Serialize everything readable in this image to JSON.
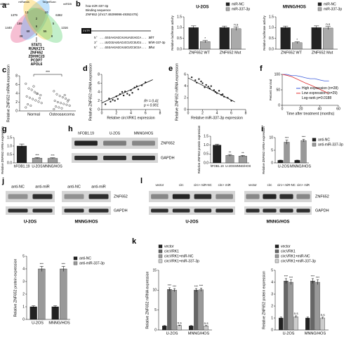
{
  "panel_labels": [
    "a",
    "b",
    "c",
    "d",
    "e",
    "f",
    "g",
    "h",
    "i",
    "j",
    "l",
    "k"
  ],
  "venn": {
    "sets": [
      "miRWalk",
      "miRanda",
      "TargetScan",
      "miRDB"
    ],
    "regions": [
      1379,
      6382,
      1440,
      13,
      10,
      1316,
      189,
      2,
      5,
      68,
      56,
      28,
      8,
      7,
      6
    ],
    "genes": [
      "STAT1",
      "RUNX1T1",
      "ZNF652",
      "ZDHHC23",
      "PCDP7",
      "APOL6"
    ]
  },
  "binding": {
    "title": "hsa-miR-337-3p",
    "subtitle": "Binding sequence",
    "gene": "ZNF652 (chr17:49299996-49362475)",
    "utr": "3'UTR",
    "sequences": [
      {
        "seq": "5' ...GGGAAGAGCAUAUAGGAGCA... 3'",
        "label": "WT"
      },
      {
        "seq": "3' ...UUCGGAUGACUCCUCCGUCU... 5'",
        "label": "miR-337-3p"
      },
      {
        "seq": "5' ...GGGAAGAGCAUUCUCCUCGA... 3'",
        "label": "Mut"
      }
    ]
  },
  "blots": {
    "h": {
      "lanes": [
        "hFOB1.19",
        "U-2OS",
        "MNNG/HOS"
      ],
      "rows": [
        "ZNF652",
        "GAPDH"
      ]
    },
    "j": {
      "groups": [
        {
          "cell": "U-2OS",
          "lanes": [
            "anti-NC",
            "anti-miR"
          ]
        },
        {
          "cell": "MNNG/HOS",
          "lanes": [
            "anti-NC",
            "anti-miR"
          ]
        }
      ],
      "rows": [
        "ZNF652",
        "GAPDH"
      ]
    },
    "l": {
      "groups": [
        {
          "cell": "U-2OS",
          "lanes": [
            "vector",
            "circ",
            "circ+ miR-NC",
            "circ+ miR"
          ]
        },
        {
          "cell": "MNNG/HOS",
          "lanes": [
            "vector",
            "circ",
            "circ+ miR-NC",
            "circ+ miR"
          ]
        }
      ],
      "rows": [
        "ZNF652",
        "GAPDH"
      ]
    }
  },
  "chart_data": [
    {
      "type": "bar",
      "title": "U-2OS",
      "ylabel": "Relative luciferase activity",
      "categories": [
        "ZNF652 WT",
        "ZNF652 Mut"
      ],
      "series": [
        {
          "name": "miR-NC",
          "color": "#222222",
          "values": [
            1.0,
            1.0
          ],
          "errors": [
            0.08,
            0.07
          ]
        },
        {
          "name": "miR-337-3p",
          "color": "#aaaaaa",
          "values": [
            0.35,
            0.95
          ],
          "errors": [
            0.05,
            0.08
          ],
          "significance": [
            "*",
            "n.s"
          ]
        }
      ],
      "ylim": [
        0,
        1.5
      ],
      "yticks": [
        {
          "value": 0,
          "label": "0.0"
        },
        {
          "value": 0.5,
          "label": "0.5"
        },
        {
          "value": 1,
          "label": "1.0"
        },
        {
          "value": 1.5,
          "label": "1.5"
        }
      ],
      "legend": "top-right"
    },
    {
      "type": "bar",
      "title": "MNNG/HOS",
      "ylabel": "Relative luciferase activity",
      "categories": [
        "ZNF652 WT",
        "ZNF652 Mut"
      ],
      "series": [
        {
          "name": "miR-NC",
          "color": "#222222",
          "values": [
            1.0,
            1.0
          ],
          "errors": [
            0.07,
            0.08
          ]
        },
        {
          "name": "miR-337-3p",
          "color": "#aaaaaa",
          "values": [
            0.3,
            0.98
          ],
          "errors": [
            0.04,
            0.07
          ],
          "significance": [
            "*",
            "n.s"
          ]
        }
      ],
      "ylim": [
        0,
        1.5
      ],
      "yticks": [
        {
          "value": 0,
          "label": "0.0"
        },
        {
          "value": 0.5,
          "label": "0.5"
        },
        {
          "value": 1,
          "label": "1.0"
        },
        {
          "value": 1.5,
          "label": "1.5"
        }
      ],
      "legend": "top-right"
    },
    {
      "type": "strip",
      "ylabel": "Relative ZNF652 mRNA expression",
      "categories": [
        "Normal",
        "Osteosarcoma"
      ],
      "values": [
        [
          6.2,
          5.1,
          4.8,
          4.3,
          3.9,
          3.6,
          3.3,
          3.0,
          2.7,
          2.4,
          2.1,
          1.8,
          1.5,
          1.2,
          5.6,
          4.0,
          2.9,
          0.8
        ],
        [
          4.5,
          3.8,
          3.4,
          3.1,
          2.8,
          2.5,
          2.3,
          2.0,
          1.8,
          1.6,
          1.4,
          1.2,
          1.0,
          0.8,
          0.6,
          3.6,
          2.2,
          0.4
        ]
      ],
      "color": "#333333",
      "ylim": [
        0,
        8
      ],
      "yticks": [
        0,
        2,
        4,
        6,
        8
      ],
      "annotations": [
        "***"
      ]
    },
    {
      "type": "scatter",
      "xlabel": "Relative circVRK1 expression",
      "ylabel": "Relative ZNF652 mRNA expression",
      "x": [
        0.5,
        1,
        1.2,
        1.5,
        2,
        2.2,
        2.5,
        3,
        3.2,
        3.5,
        4,
        4.2,
        4.5,
        5,
        5.5,
        6,
        1.8,
        2.8,
        3.8,
        4.8
      ],
      "y": [
        1.2,
        2.5,
        1.8,
        2.2,
        3,
        2.4,
        3.5,
        3.2,
        4.1,
        3.6,
        4.4,
        3.8,
        5,
        4.6,
        5.5,
        6.2,
        2.0,
        4.0,
        3.3,
        5.3
      ],
      "color": "#222222",
      "xlim": [
        0,
        8
      ],
      "xticks": [
        0,
        2,
        4,
        6,
        8
      ],
      "ylim": [
        0,
        8
      ],
      "yticks": [
        0,
        2,
        4,
        6,
        8
      ],
      "trend_line": {
        "x": [
          0,
          7
        ],
        "y": [
          1.5,
          6.8
        ]
      },
      "annotations": [
        "R² = 0.41",
        "p < 0.001"
      ]
    },
    {
      "type": "scatter",
      "xlabel": "Relative miR-337-3p expression",
      "ylabel": "Relative ZNF652 mRNA expression",
      "x": [
        0.5,
        1,
        1.2,
        1.5,
        2,
        2.3,
        2.5,
        3,
        3.2,
        3.6,
        4,
        4.3,
        4.6,
        5,
        5.5,
        6,
        1.8,
        2.8,
        3.8,
        4.8
      ],
      "y": [
        5.5,
        5,
        4.6,
        5.2,
        4.5,
        3.8,
        4.2,
        3.6,
        4,
        3.3,
        2.8,
        3.2,
        2.5,
        2.2,
        2,
        1.5,
        4.8,
        3.9,
        3,
        2.6
      ],
      "color": "#222222",
      "xlim": [
        0,
        8
      ],
      "xticks": [
        0,
        2,
        4,
        6,
        8
      ],
      "ylim": [
        0,
        6
      ],
      "yticks": [
        0,
        2,
        4,
        6
      ],
      "trend_line": {
        "x": [
          0,
          6.5
        ],
        "y": [
          5.4,
          1.3
        ]
      }
    },
    {
      "type": "line",
      "xlabel": "Time after treatment (months)",
      "ylabel": "Percent survival",
      "x": [
        0,
        5,
        10,
        15,
        20,
        25,
        30,
        35,
        40,
        45,
        50
      ],
      "series": [
        {
          "name": "High expression (n=28)",
          "color": "#3b5bdb",
          "values": [
            100,
            100,
            96,
            96,
            93,
            89,
            86,
            86,
            82,
            79,
            79
          ]
        },
        {
          "name": "Low expression (n=29)",
          "color": "#e03131",
          "values": [
            100,
            97,
            93,
            86,
            79,
            72,
            66,
            59,
            52,
            45,
            38
          ]
        }
      ],
      "xlim": [
        0,
        60
      ],
      "xticks": [
        0,
        20,
        40,
        60
      ],
      "ylim": [
        0,
        100
      ],
      "yticks": [
        0,
        50,
        100
      ],
      "legend": "center",
      "annotations": [
        "Log-rank p=0.0188"
      ]
    },
    {
      "type": "bar",
      "ylabel": "Relative ZNF652 mRNA expression",
      "categories": [
        "hFOB1.19",
        "U-2OS",
        "MNNG/HOS"
      ],
      "values": [
        1.0,
        0.28,
        0.27
      ],
      "errors": [
        0.12,
        0.04,
        0.03
      ],
      "significance": [
        null,
        "***",
        "***"
      ],
      "colors": [
        "#222222",
        "#999999",
        "#999999"
      ],
      "ylim": [
        0,
        1.5
      ],
      "yticks": [
        {
          "value": 0,
          "label": "0.0"
        },
        {
          "value": 0.5,
          "label": "0.5"
        },
        {
          "value": 1,
          "label": "1.0"
        },
        {
          "value": 1.5,
          "label": "1.5"
        }
      ]
    },
    {
      "type": "bar",
      "ylabel": "Relative ZNF652 protein expression",
      "categories": [
        "hFOB1.19",
        "U-2OS",
        "MNNG/HOS"
      ],
      "values": [
        1.0,
        0.42,
        0.38
      ],
      "errors": [
        0.05,
        0.05,
        0.04
      ],
      "significance": [
        null,
        "**",
        "**"
      ],
      "colors": [
        "#222222",
        "#999999",
        "#999999"
      ],
      "ylim": [
        0,
        1.5
      ],
      "yticks": [
        {
          "value": 0,
          "label": "0.0"
        },
        {
          "value": 0.5,
          "label": "0.5"
        },
        {
          "value": 1,
          "label": "1.0"
        },
        {
          "value": 1.5,
          "label": "1.5"
        }
      ]
    },
    {
      "type": "bar",
      "ylabel": "Relative ZNF652 mRNA expression",
      "categories": [
        "U-2OS",
        "MNNG/HOS"
      ],
      "series": [
        {
          "name": "anti-NC",
          "color": "#222222",
          "values": [
            1,
            1
          ],
          "errors": [
            0.1,
            0.1
          ]
        },
        {
          "name": "anti-miR-337-3p",
          "color": "#999999",
          "values": [
            8.2,
            8.8
          ],
          "errors": [
            0.8,
            0.5
          ],
          "significance": [
            "***",
            "***"
          ]
        }
      ],
      "ylim": [
        0,
        10
      ],
      "yticks": [
        0,
        5,
        10
      ],
      "legend": "right"
    },
    {
      "type": "bar",
      "ylabel": "Relative ZNF652 protein expression",
      "categories": [
        "U-2OS",
        "MNNG/HOS"
      ],
      "series": [
        {
          "name": "anti-NC",
          "color": "#222222",
          "values": [
            1,
            1
          ],
          "errors": [
            0.08,
            0.08
          ]
        },
        {
          "name": "anti-miR-337-3p",
          "color": "#999999",
          "values": [
            4.0,
            4.0
          ],
          "errors": [
            0.2,
            0.2
          ],
          "significance": [
            "***",
            "***"
          ]
        }
      ],
      "ylim": [
        0,
        5
      ],
      "yticks": [
        0,
        1,
        2,
        3,
        4,
        5
      ],
      "legend": "right"
    },
    {
      "type": "bar",
      "ylabel": "Relative ZNF652 mRNA expression",
      "categories": [
        "U-2OS",
        "MNNG/HOS"
      ],
      "series": [
        {
          "name": "vector",
          "color": "#222222",
          "values": [
            1,
            1
          ],
          "errors": [
            0.1,
            0.1
          ]
        },
        {
          "name": "circVRK1",
          "color": "#666666",
          "values": [
            10.2,
            10
          ],
          "errors": [
            0.4,
            0.4
          ],
          "significance": [
            "***",
            "***"
          ]
        },
        {
          "name": "circVRK1+miR-NC",
          "color": "#999999",
          "values": [
            10,
            10.1
          ],
          "errors": [
            0.4,
            0.4
          ],
          "significance": [
            "***",
            "***"
          ]
        },
        {
          "name": "circVRK1+miR-337-3p",
          "color": "#cccccc",
          "values": [
            1.1,
            1.0
          ],
          "errors": [
            0.1,
            0.1
          ],
          "significance": [
            "n.s",
            "n.s"
          ]
        }
      ],
      "ylim": [
        0,
        15
      ],
      "yticks": [
        0,
        5,
        10,
        15
      ],
      "legend": "top"
    },
    {
      "type": "bar",
      "ylabel": "Relative ZNF652 protein expression",
      "categories": [
        "U-2OS",
        "MNNG/HOS"
      ],
      "series": [
        {
          "name": "vector",
          "color": "#222222",
          "values": [
            1,
            1
          ],
          "errors": [
            0.08,
            0.08
          ]
        },
        {
          "name": "circVRK1",
          "color": "#666666",
          "values": [
            4.1,
            4.1
          ],
          "errors": [
            0.2,
            0.2
          ],
          "significance": [
            "***",
            "***"
          ]
        },
        {
          "name": "circVRK1+miR-NC",
          "color": "#999999",
          "values": [
            4,
            4
          ],
          "errors": [
            0.2,
            0.2
          ],
          "significance": [
            "***",
            "***"
          ]
        },
        {
          "name": "circVRK1+miR-337-3p",
          "color": "#cccccc",
          "values": [
            1.1,
            1.0
          ],
          "errors": [
            0.08,
            0.08
          ],
          "significance": [
            "n.s",
            "n.s"
          ]
        }
      ],
      "ylim": [
        0,
        5
      ],
      "yticks": [
        0,
        1,
        2,
        3,
        4,
        5
      ],
      "legend": "top"
    }
  ]
}
